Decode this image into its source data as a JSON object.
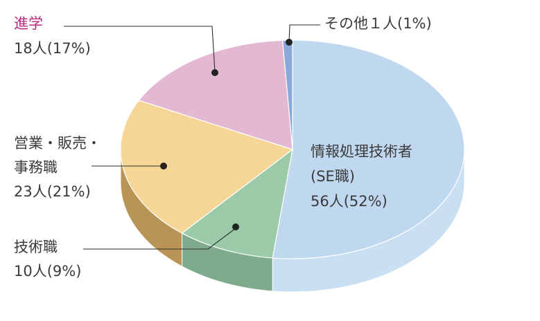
{
  "chart_data": {
    "type": "pie",
    "title": "",
    "units": "人",
    "slices": [
      {
        "name": "情報処理技術者(SE職)",
        "label_lines": [
          "情報処理技術者",
          "(SE職)",
          "56人(52%)"
        ],
        "count": 56,
        "percent": 52,
        "color": "#c0d8ef",
        "side_color": "#c9dff2"
      },
      {
        "name": "技術職",
        "label_lines": [
          "技術職",
          "10人(9%)"
        ],
        "count": 10,
        "percent": 9,
        "color": "#9bcaa9",
        "side_color": "#7fab8c"
      },
      {
        "name": "営業・販売・事務職",
        "label_lines": [
          "営業・販売・",
          "事務職",
          "23人(21%)"
        ],
        "count": 23,
        "percent": 21,
        "color": "#f5d697",
        "side_color": "#b89556"
      },
      {
        "name": "進学",
        "label_lines": [
          "進学",
          "18人(17%)"
        ],
        "count": 18,
        "percent": 17,
        "color": "#e2b8d2",
        "side_color": "#c99ab7",
        "label_color": "#b8297f"
      },
      {
        "name": "その他",
        "label_lines": [
          "その他１人(1%)"
        ],
        "count": 1,
        "percent": 1,
        "color": "#8aa8d8",
        "side_color": "#6f8ec4"
      }
    ]
  }
}
